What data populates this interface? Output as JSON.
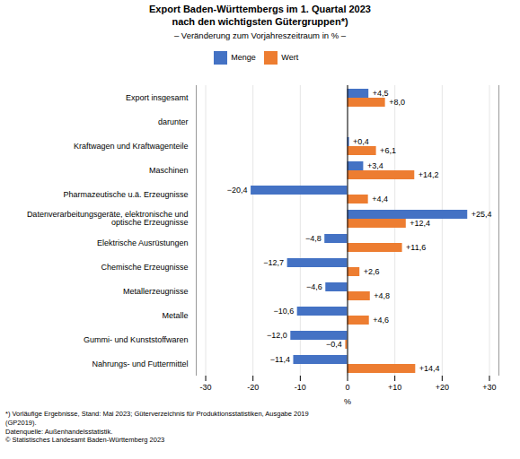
{
  "chart_data": {
    "type": "bar",
    "orientation": "horizontal",
    "title": "Export Baden-Württembergs im 1. Quartal 2023\nnach den wichtigsten Gütergruppen*)",
    "subtitle": "– Veränderung zum Vorjahreszeitraum in % –",
    "xlabel": "%",
    "categories": [
      "Export insgesamt",
      "darunter",
      "Kraftwagen und Kraftwagenteile",
      "Maschinen",
      "Pharmazeutische u.ä. Erzeugnisse",
      "Datenverarbeitungsgeräte, elektronische und\noptische Erzeugnisse",
      "Elektrische Ausrüstungen",
      "Chemische Erzeugnisse",
      "Metallerzeugnisse",
      "Metalle",
      "Gummi- und Kunststoffwaren",
      "Nahrungs- und Futtermittel"
    ],
    "series": [
      {
        "name": "Menge",
        "color": "#4472C4",
        "values": [
          4.5,
          null,
          0.4,
          3.4,
          -20.4,
          25.4,
          -4.8,
          -12.7,
          -4.6,
          -10.6,
          -12.0,
          -11.4
        ],
        "value_labels": [
          "+4,5",
          null,
          "+0,4",
          "+3,4",
          "−20,4",
          "+25,4",
          "−4,8",
          "−12,7",
          "−4,6",
          "−10,6",
          "−12,0",
          "−11,4"
        ]
      },
      {
        "name": "Wert",
        "color": "#ED7D31",
        "values": [
          8.0,
          null,
          6.1,
          14.2,
          4.4,
          12.4,
          11.6,
          2.6,
          4.8,
          4.6,
          -0.4,
          14.4
        ],
        "value_labels": [
          "+8,0",
          null,
          "+6,1",
          "+14,2",
          "+4,4",
          "+12,4",
          "+11,6",
          "+2,6",
          "+4,8",
          "+4,6",
          "−0,4",
          "+14,4"
        ]
      }
    ],
    "xlim": [
      -32,
      32
    ],
    "xticks": [
      -30,
      -20,
      -10,
      0,
      {
        "value": 10,
        "label": "+10"
      },
      {
        "value": 20,
        "label": "+20"
      },
      {
        "value": 30,
        "label": "+30"
      }
    ],
    "grid": true,
    "legend": "top",
    "data_labels": true,
    "annotations": [
      "*) Vorläufige Ergebnisse, Stand: Mai 2023; Güterverzeichnis für Produktionsstatistiken, Ausgabe 2019",
      "(GP2019).",
      "Datenquelle: Außenhandelsstatistik.",
      "© Statistisches Landesamt Baden-Württemberg 2023"
    ]
  }
}
